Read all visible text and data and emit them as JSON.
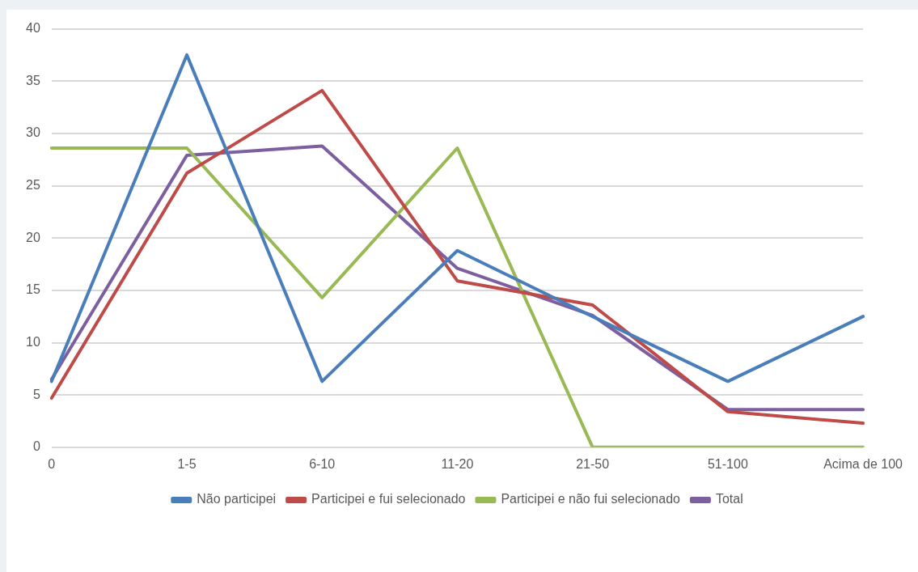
{
  "chart_data": {
    "type": "line",
    "categories": [
      "0",
      "1-5",
      "6-10",
      "11-20",
      "21-50",
      "51-100",
      "Acima de 100"
    ],
    "series": [
      {
        "name": "Não participei",
        "color": "#4a7ebb",
        "values": [
          6.3,
          37.5,
          6.3,
          18.8,
          12.5,
          6.3,
          12.5
        ]
      },
      {
        "name": "Participei e fui selecionado",
        "color": "#be4b48",
        "values": [
          4.7,
          26.2,
          34.1,
          15.9,
          13.6,
          3.4,
          2.3
        ]
      },
      {
        "name": "Participei e não fui selecionado",
        "color": "#98b954",
        "values": [
          28.6,
          28.6,
          14.3,
          28.6,
          0,
          0,
          0
        ]
      },
      {
        "name": "Total",
        "color": "#7d5fa0",
        "values": [
          6.5,
          27.9,
          28.8,
          17.1,
          12.6,
          3.6,
          3.6
        ]
      }
    ],
    "ylim": [
      0,
      40
    ],
    "yticks": [
      0,
      5,
      10,
      15,
      20,
      25,
      30,
      35,
      40
    ],
    "grid": "y",
    "legend": "bottom",
    "marker": "none",
    "line_style": "solid"
  }
}
